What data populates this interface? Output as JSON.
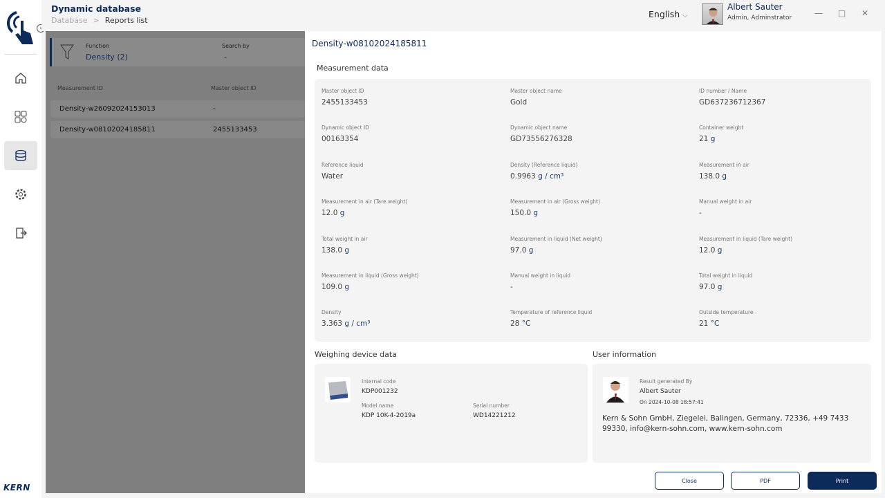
{
  "header": {
    "title": "Dynamic database",
    "breadcrumb": [
      "Database",
      "Reports list"
    ],
    "language": "English",
    "user_name": "Albert Sauter",
    "user_role": "Admin, Adminstrator"
  },
  "sidebar": {
    "items": [
      {
        "icon": "home-icon"
      },
      {
        "icon": "dashboard-icon"
      },
      {
        "icon": "database-icon",
        "active": true
      },
      {
        "icon": "settings-icon"
      },
      {
        "icon": "logout-icon"
      }
    ],
    "brand": "KERN"
  },
  "background": {
    "filter_label": "Function",
    "filter_value": "Density (2)",
    "search_label": "Search by",
    "search_value": "-",
    "columns": [
      "Measurement ID",
      "Master object ID"
    ],
    "rows": [
      [
        "Density-w26092024153013",
        "-"
      ],
      [
        "Density-w08102024185811",
        "2455133453"
      ]
    ]
  },
  "modal": {
    "title": "Density-w08102024185811",
    "measurement_title": "Measurement data",
    "fields": [
      {
        "label": "Master object ID",
        "value": "2455133453",
        "unit": ""
      },
      {
        "label": "Master object name",
        "value": "Gold",
        "unit": ""
      },
      {
        "label": "ID number / Name",
        "value": "GD637236712367",
        "unit": ""
      },
      {
        "label": "Dynamic object ID",
        "value": "00163354",
        "unit": ""
      },
      {
        "label": "Dynamic object name",
        "value": "GD73556276328",
        "unit": ""
      },
      {
        "label": "Container weight",
        "value": "21",
        "unit": "g"
      },
      {
        "label": "Reference liquid",
        "value": "Water",
        "unit": ""
      },
      {
        "label": "Density (Reference liquid)",
        "value": "0.9963",
        "unit": "g / cm³"
      },
      {
        "label": "Measurement in air",
        "value": "138.0",
        "unit": "g"
      },
      {
        "label": "Measurement in air (Tare weight)",
        "value": "12.0",
        "unit": "g"
      },
      {
        "label": "Measurement in air (Gross weight)",
        "value": "150.0",
        "unit": "g"
      },
      {
        "label": "Manual weight in air",
        "value": "-",
        "unit": ""
      },
      {
        "label": "Total weight in air",
        "value": "138.0",
        "unit": "g"
      },
      {
        "label": "Measurement in liquid (Net weight)",
        "value": "97.0",
        "unit": "g"
      },
      {
        "label": "Measurement in liquid (Tare weight)",
        "value": "12.0",
        "unit": "g"
      },
      {
        "label": "Measurement in liquid (Gross weight)",
        "value": "109.0",
        "unit": "g"
      },
      {
        "label": "Manual weight in liquid",
        "value": "-",
        "unit": ""
      },
      {
        "label": "Total weight in liquid",
        "value": "97.0",
        "unit": "g"
      },
      {
        "label": "Density",
        "value": "3.363",
        "unit": "g / cm³"
      },
      {
        "label": "Temperature of reference liquid",
        "value": "28",
        "unit": "°C"
      },
      {
        "label": "Outside temperature",
        "value": "21",
        "unit": "°C"
      }
    ],
    "device": {
      "title": "Weighing device data",
      "internal_code_label": "Internal code",
      "internal_code": "KDP001232",
      "model_label": "Model name",
      "model": "KDP 10K-4-2019a",
      "serial_label": "Serial number",
      "serial": "WD14221212"
    },
    "user": {
      "title": "User information",
      "generated_label": "Result generated By",
      "name": "Albert Sauter",
      "date": "On 2024-10-08 18:57:41",
      "address": "Kern & Sohn GmbH, Ziegelei, Balingen, Germany, 72336, +49 7433 99330, info@kern-sohn.com, www.kern-sohn.com"
    },
    "buttons": {
      "close": "Close",
      "pdf": "PDF",
      "print": "Print"
    }
  },
  "colors": {
    "brand": "#0c2a5a",
    "overlay": "#7f7f7f"
  }
}
